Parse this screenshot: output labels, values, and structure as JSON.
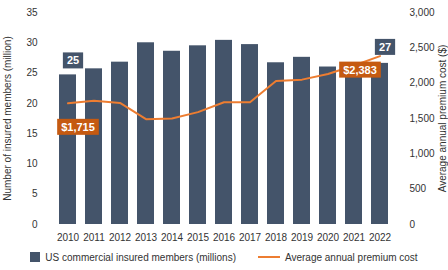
{
  "chart_data": {
    "type": "bar",
    "categories": [
      "2010",
      "2011",
      "2012",
      "2013",
      "2014",
      "2015",
      "2016",
      "2017",
      "2018",
      "2019",
      "2020",
      "2021",
      "2022"
    ],
    "series": [
      {
        "name": "US commercial insured members (millions)",
        "type": "bar",
        "color": "#44546a",
        "values": [
          24.7,
          25.7,
          26.8,
          30.0,
          28.6,
          29.5,
          30.4,
          29.7,
          26.7,
          27.6,
          26.0,
          26.4,
          26.6
        ],
        "value_labels": [
          "25",
          null,
          null,
          null,
          null,
          null,
          null,
          null,
          null,
          null,
          null,
          null,
          "27"
        ]
      },
      {
        "name": "Average annual premium cost",
        "type": "line",
        "axis": "y2",
        "color": "#ed7d31",
        "values": [
          1715,
          1750,
          1720,
          1490,
          1500,
          1590,
          1730,
          1730,
          2030,
          2050,
          2130,
          2250,
          2383
        ],
        "value_labels": [
          "$1,715",
          null,
          null,
          null,
          null,
          null,
          null,
          null,
          null,
          null,
          null,
          null,
          "$2,383"
        ]
      }
    ],
    "y_label": "Number of insured members (million)",
    "y2_label": "Average annual premium cost ($)",
    "ylim": [
      0,
      35
    ],
    "yticks": [
      0,
      5,
      10,
      15,
      20,
      25,
      30,
      35
    ],
    "y2lim": [
      0,
      3000
    ],
    "y2ticks": [
      0,
      500,
      {
        "value": 1000,
        "label": "1,000"
      },
      {
        "value": 1500,
        "label": "1,500"
      },
      {
        "value": 2000,
        "label": "2,000"
      },
      {
        "value": 2500,
        "label": "2,500"
      },
      {
        "value": 3000,
        "label": "3,000"
      }
    ],
    "grid": false,
    "data_labels": true,
    "legend": "bottom"
  }
}
